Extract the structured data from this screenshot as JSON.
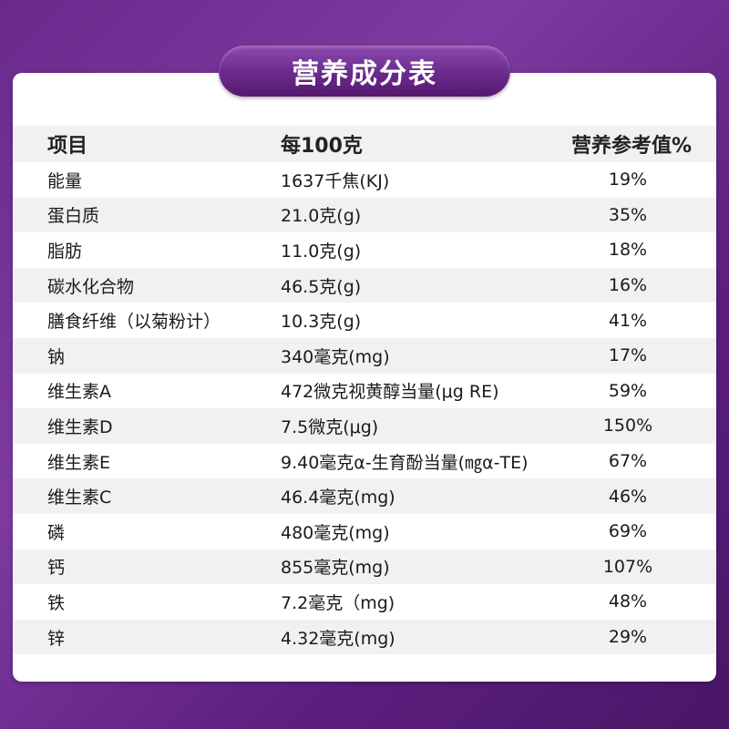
{
  "title": "营养成分表",
  "table": {
    "headers": [
      "项目",
      "每100克",
      "营养参考值%"
    ],
    "rows": [
      [
        "能量",
        "1637千焦(KJ)",
        "19%"
      ],
      [
        "蛋白质",
        "21.0克(g)",
        "35%"
      ],
      [
        "脂肪",
        "11.0克(g)",
        "18%"
      ],
      [
        "碳水化合物",
        "46.5克(g)",
        "16%"
      ],
      [
        "膳食纤维（以菊粉计）",
        "10.3克(g)",
        "41%"
      ],
      [
        "钠",
        "340毫克(mg)",
        "17%"
      ],
      [
        "维生素A",
        "472微克视黄醇当量(μg RE)",
        "59%"
      ],
      [
        "维生素D",
        "7.5微克(μg)",
        "150%"
      ],
      [
        "维生素E",
        "9.40毫克α-生育酚当量(㎎α-TE)",
        "67%"
      ],
      [
        "维生素C",
        "46.4毫克(mg)",
        "46%"
      ],
      [
        "磷",
        "480毫克(mg)",
        "69%"
      ],
      [
        "钙",
        "855毫克(mg)",
        "107%"
      ],
      [
        "铁",
        "7.2毫克（mg)",
        "48%"
      ],
      [
        "锌",
        "4.32毫克(mg)",
        "29%"
      ]
    ]
  },
  "colors": {
    "background": "#6a2a8c",
    "stripe": "#f1f1f3",
    "title_pill": "#6a2a8c",
    "title_text": "#ffffff"
  }
}
